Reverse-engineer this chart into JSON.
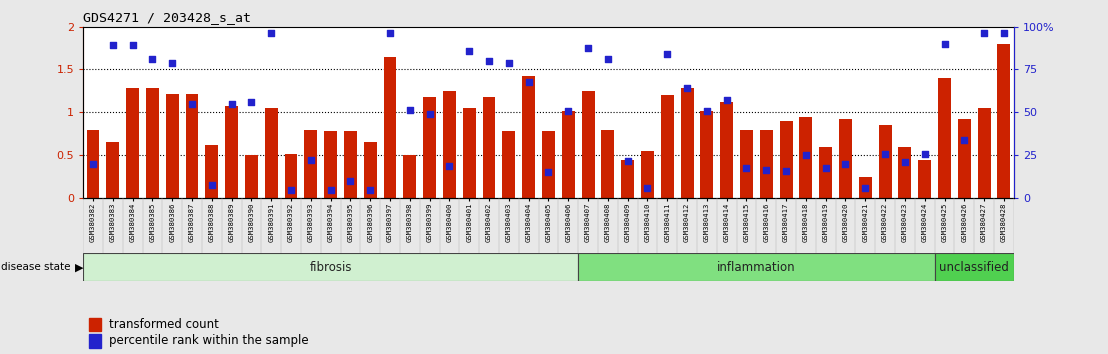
{
  "title": "GDS4271 / 203428_s_at",
  "samples": [
    "GSM380382",
    "GSM380383",
    "GSM380384",
    "GSM380385",
    "GSM380386",
    "GSM380387",
    "GSM380388",
    "GSM380389",
    "GSM380390",
    "GSM380391",
    "GSM380392",
    "GSM380393",
    "GSM380394",
    "GSM380395",
    "GSM380396",
    "GSM380397",
    "GSM380398",
    "GSM380399",
    "GSM380400",
    "GSM380401",
    "GSM380402",
    "GSM380403",
    "GSM380404",
    "GSM380405",
    "GSM380406",
    "GSM380407",
    "GSM380408",
    "GSM380409",
    "GSM380410",
    "GSM380411",
    "GSM380412",
    "GSM380413",
    "GSM380414",
    "GSM380415",
    "GSM380416",
    "GSM380417",
    "GSM380418",
    "GSM380419",
    "GSM380420",
    "GSM380421",
    "GSM380422",
    "GSM380423",
    "GSM380424",
    "GSM380425",
    "GSM380426",
    "GSM380427",
    "GSM380428"
  ],
  "bar_values": [
    0.8,
    0.65,
    1.28,
    1.28,
    1.22,
    1.22,
    0.62,
    1.08,
    0.5,
    1.05,
    0.52,
    0.8,
    0.78,
    0.78,
    0.65,
    1.65,
    0.5,
    1.18,
    1.25,
    1.05,
    1.18,
    0.78,
    1.42,
    0.78,
    1.02,
    1.25,
    0.8,
    0.45,
    0.55,
    1.2,
    1.28,
    1.02,
    1.12,
    0.8,
    0.8,
    0.9,
    0.95,
    0.6,
    0.92,
    0.25,
    0.85,
    0.6,
    0.45,
    1.4,
    0.92,
    1.05,
    1.8
  ],
  "dot_values": [
    0.4,
    1.78,
    1.78,
    1.62,
    1.58,
    1.1,
    0.15,
    1.1,
    1.12,
    1.92,
    0.1,
    0.45,
    0.1,
    0.2,
    0.1,
    1.92,
    1.03,
    0.98,
    0.38,
    1.72,
    1.6,
    1.58,
    1.35,
    0.3,
    1.02,
    1.75,
    1.62,
    0.43,
    0.12,
    1.68,
    1.28,
    1.02,
    1.14,
    0.35,
    0.33,
    0.32,
    0.5,
    0.35,
    0.4,
    0.12,
    0.52,
    0.42,
    0.52,
    1.8,
    0.68,
    1.92,
    1.92
  ],
  "groups": [
    {
      "label": "fibrosis",
      "start": 0,
      "end": 25,
      "color": "#d0f0d0"
    },
    {
      "label": "inflammation",
      "start": 25,
      "end": 43,
      "color": "#80e080"
    },
    {
      "label": "unclassified",
      "start": 43,
      "end": 47,
      "color": "#50d050"
    }
  ],
  "ylim": [
    0,
    2.0
  ],
  "yticks": [
    0,
    0.5,
    1.0,
    1.5,
    2.0
  ],
  "ytick_labels_left": [
    "0",
    "0.5",
    "1",
    "1.5",
    "2"
  ],
  "ytick_labels_right": [
    "0",
    "25",
    "50",
    "75",
    "100%"
  ],
  "bar_color": "#cc2200",
  "dot_color": "#2222cc",
  "bg_color": "#e8e8e8",
  "plot_bg": "#ffffff",
  "dotted_lines": [
    0.5,
    1.0,
    1.5
  ]
}
